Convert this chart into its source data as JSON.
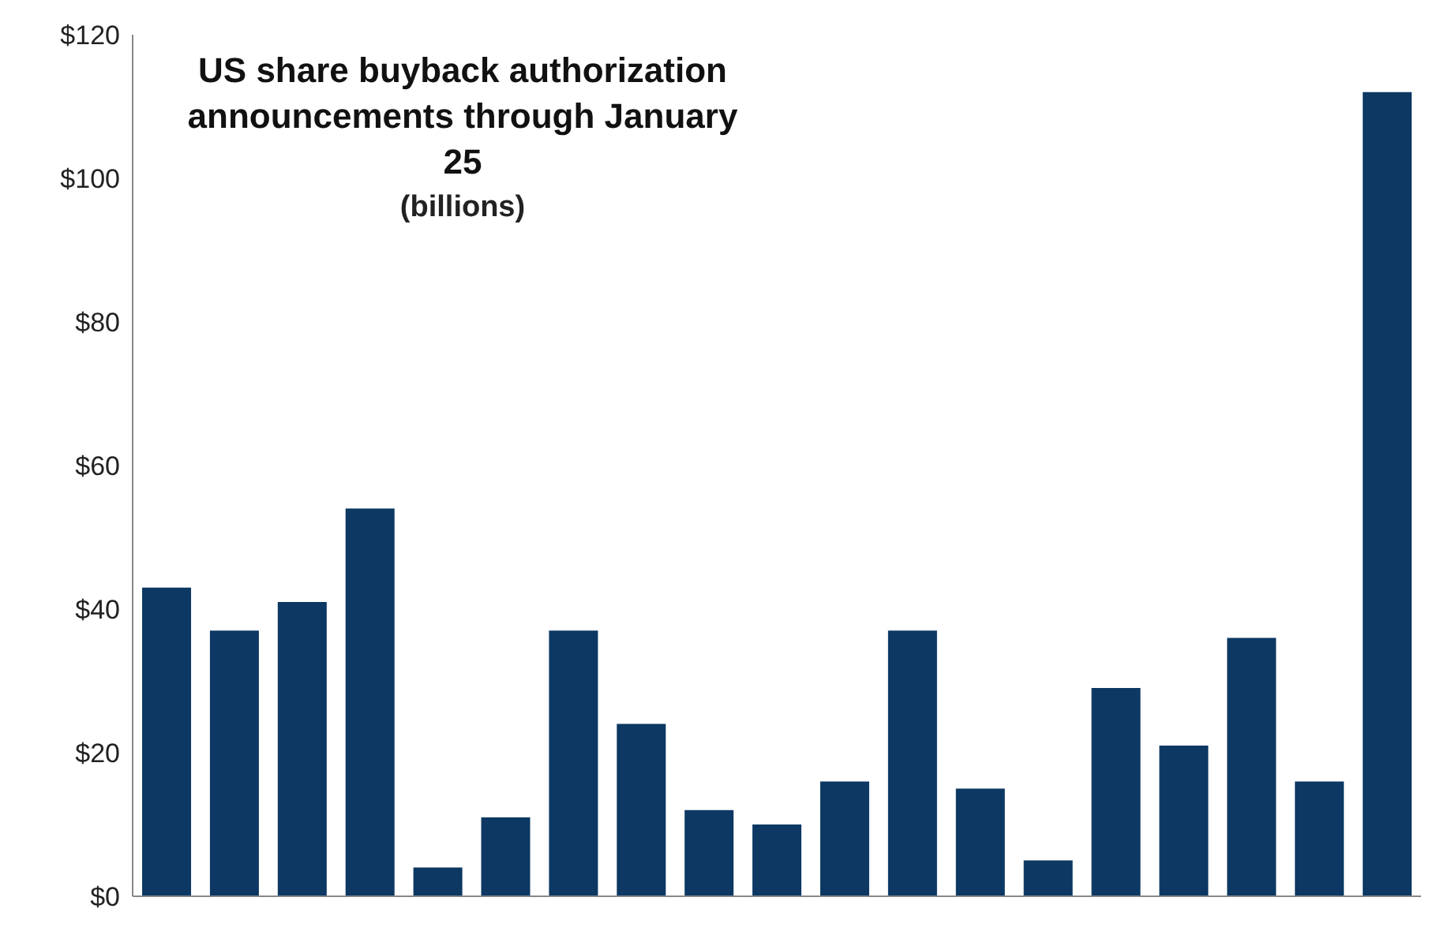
{
  "chart_data": {
    "type": "bar",
    "title": "US share buyback authorization announcements through January  25",
    "subtitle": "(billions)",
    "categories": [
      null,
      null,
      null,
      null,
      null,
      null,
      null,
      null,
      null,
      null,
      null,
      null,
      null,
      null,
      null,
      null,
      null,
      null,
      null
    ],
    "values": [
      43,
      37,
      41,
      54,
      4,
      11,
      37,
      24,
      12,
      10,
      16,
      37,
      15,
      5,
      29,
      21,
      36,
      16,
      112
    ],
    "color": "#0c3863",
    "ylim": [
      0,
      120
    ],
    "yticks": [
      {
        "value": 0,
        "label": "$0"
      },
      {
        "value": 20,
        "label": "$20"
      },
      {
        "value": 40,
        "label": "$40"
      },
      {
        "value": 60,
        "label": "$60"
      },
      {
        "value": 80,
        "label": "$80"
      },
      {
        "value": 100,
        "label": "$100"
      },
      {
        "value": 120,
        "label": "$120"
      }
    ],
    "grid": false
  }
}
